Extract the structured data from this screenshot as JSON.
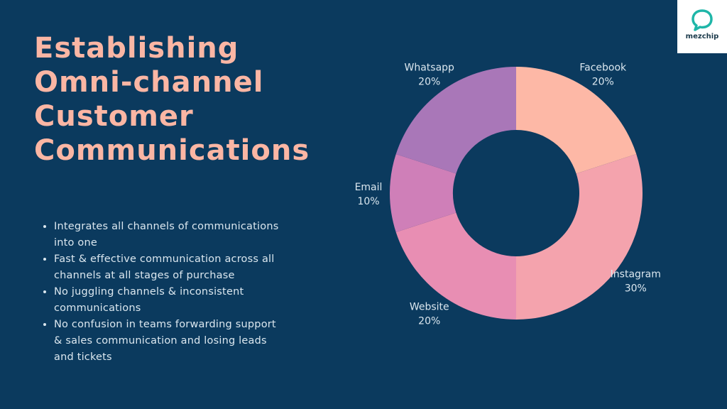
{
  "title_lines": [
    "Establishing",
    "Omni-channel",
    "Customer",
    "Communications"
  ],
  "bullets": [
    "Integrates all channels of communications into one",
    "Fast & effective communication across all channels at all stages of purchase",
    "No juggling channels & inconsistent communications",
    "No confusion in teams forwarding support & sales communication and losing leads and tickets"
  ],
  "logo": {
    "text": "mezchip",
    "icon": "chat-bubble-icon",
    "color": "#1fb6a8"
  },
  "colors": {
    "background": "#0b3a5e",
    "title": "#fbb6a4",
    "body_text": "#dbe7ef"
  },
  "chart_data": {
    "type": "pie",
    "variant": "donut",
    "slices": [
      {
        "label": "Facebook",
        "value": 20,
        "display": "20%",
        "color": "#fdb8a6"
      },
      {
        "label": "Instagram",
        "value": 30,
        "display": "30%",
        "color": "#f4a3ad"
      },
      {
        "label": "Website",
        "value": 20,
        "display": "20%",
        "color": "#e88eb3"
      },
      {
        "label": "Email",
        "value": 10,
        "display": "10%",
        "color": "#cf7fb8"
      },
      {
        "label": "Whatsapp",
        "value": 20,
        "display": "20%",
        "color": "#a977b8"
      }
    ],
    "start": "12 o'clock",
    "direction": "clockwise",
    "legend": "none"
  }
}
